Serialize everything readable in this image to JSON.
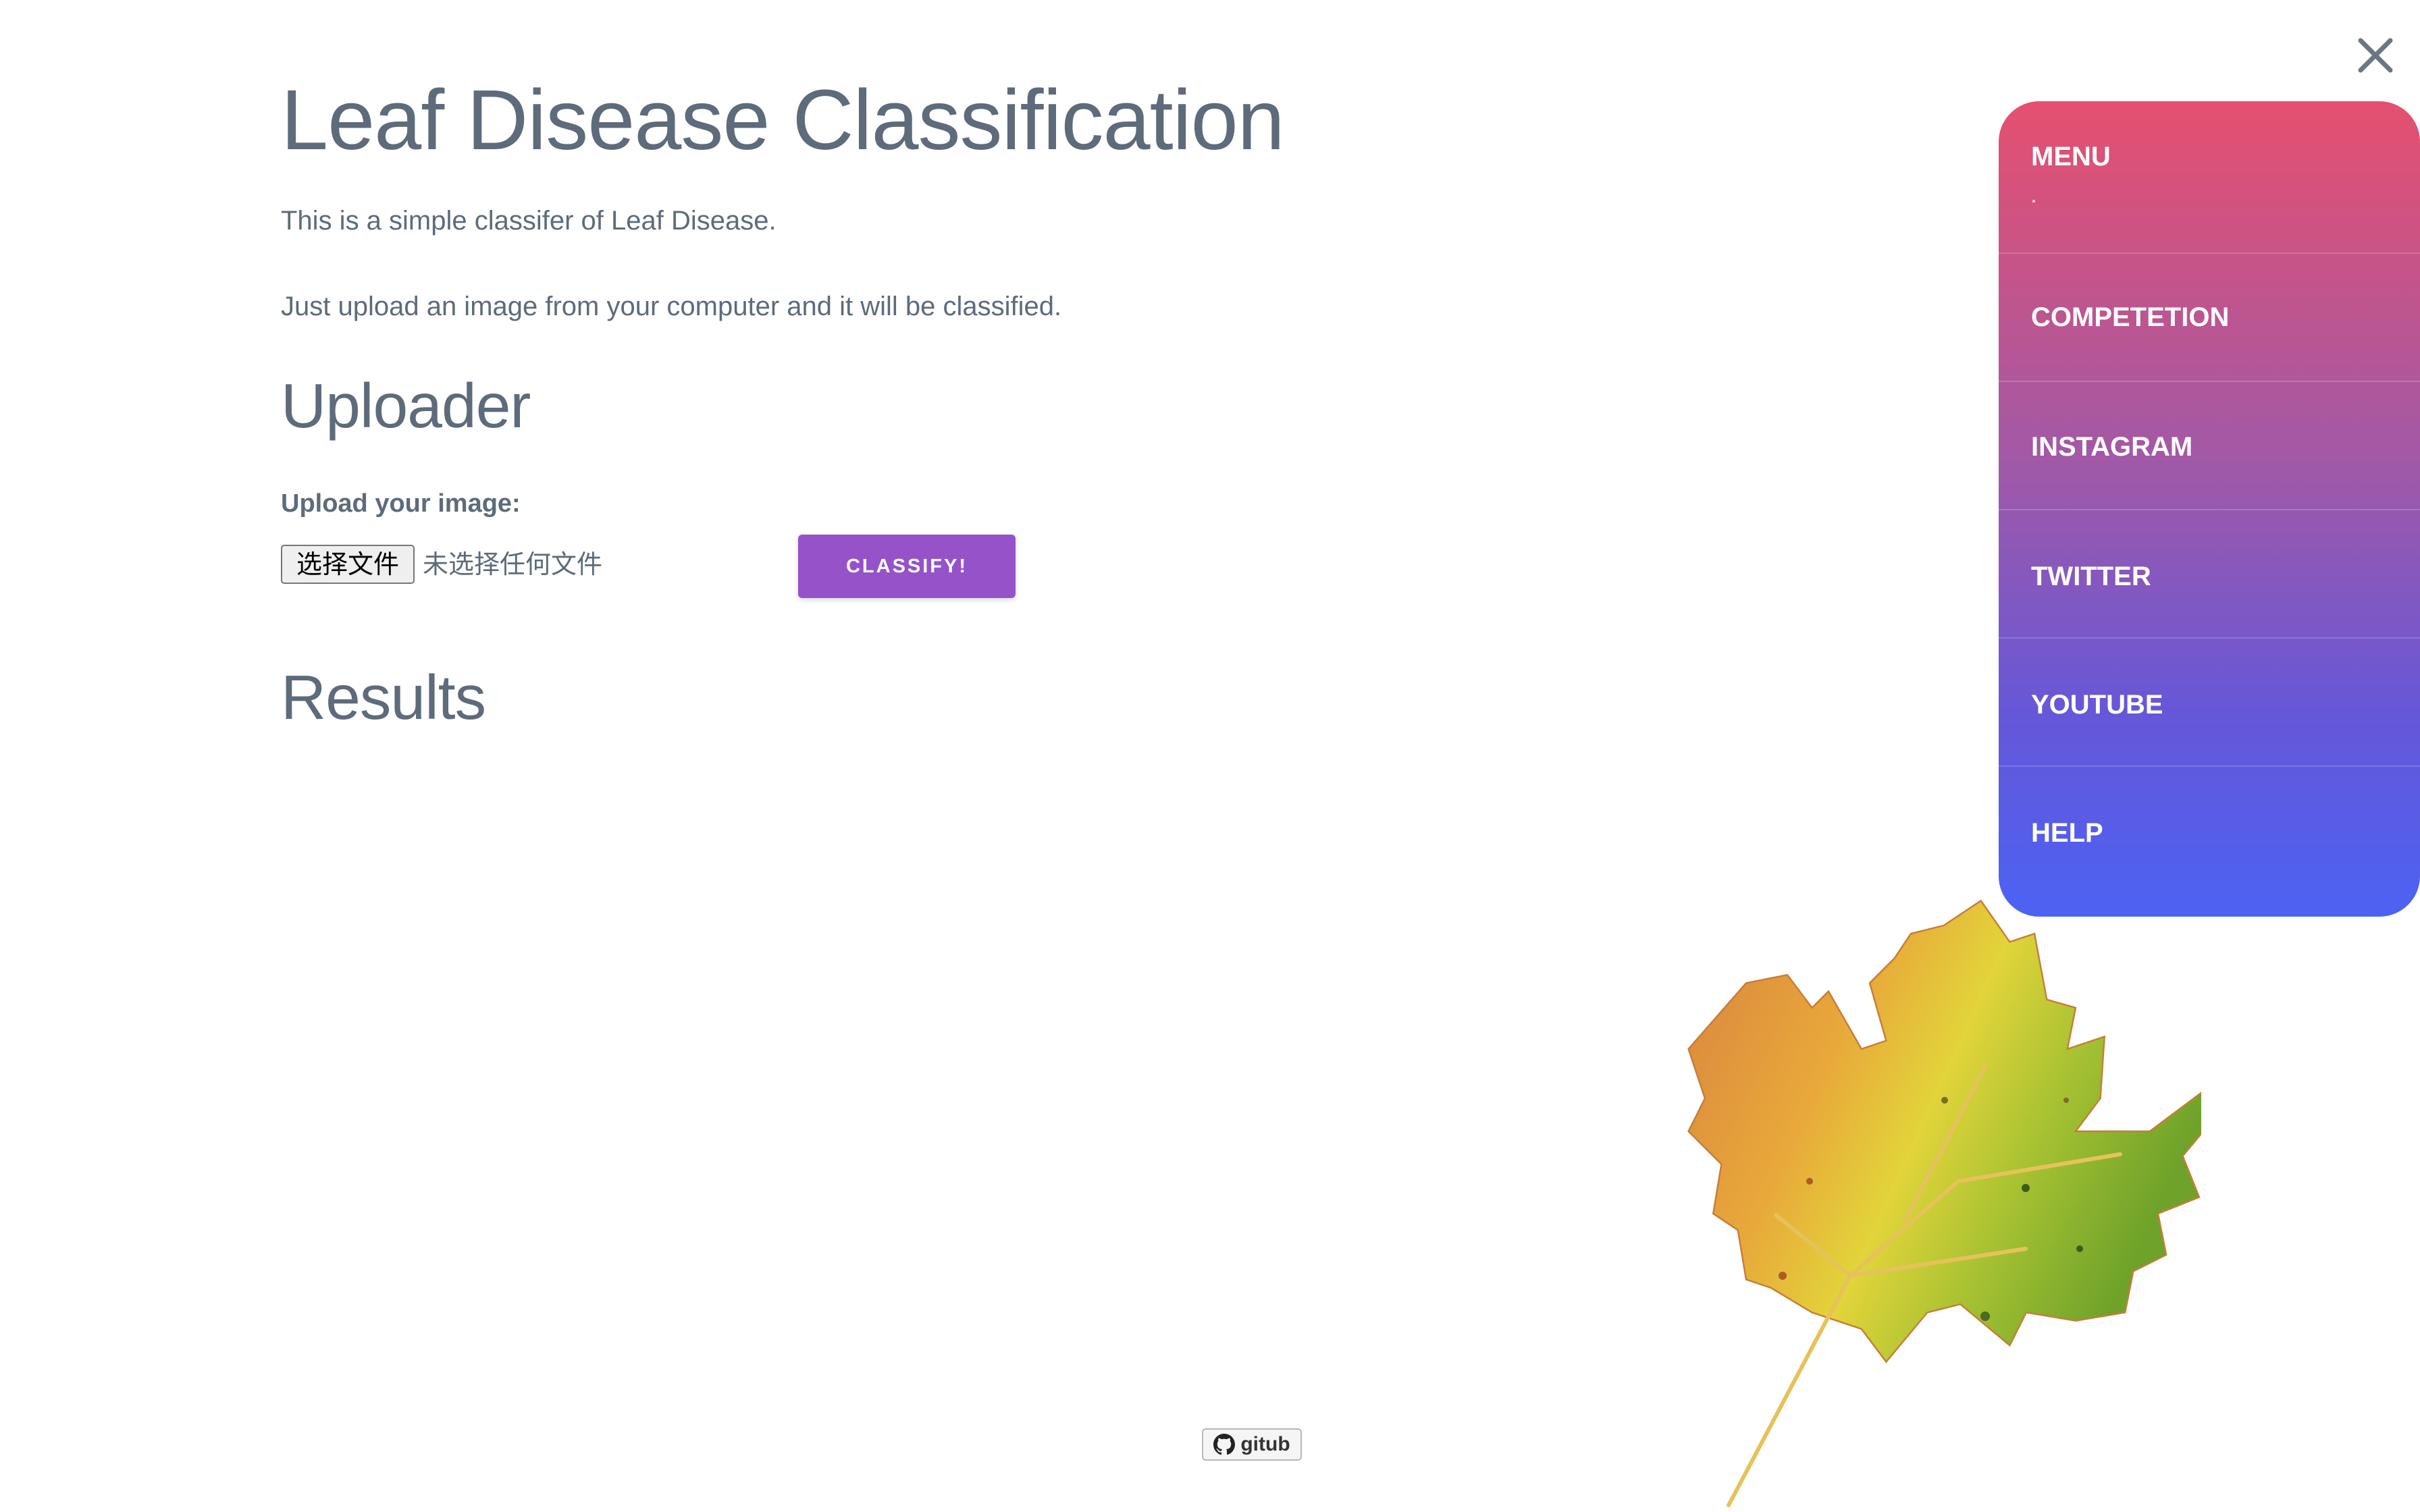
{
  "header": {
    "title": "Leaf Disease Classification",
    "description_line1": "This is a simple classifer of Leaf Disease.",
    "description_line2": "Just upload an image from your computer and it will be classified."
  },
  "uploader": {
    "heading": "Uploader",
    "label": "Upload your image:",
    "file_button_label": "选择文件",
    "file_status": "未选择任何文件",
    "classify_label": "CLASSIFY!"
  },
  "results": {
    "heading": "Results"
  },
  "menu": {
    "items": [
      {
        "label": "MENU"
      },
      {
        "label": "COMPETETION"
      },
      {
        "label": "INSTAGRAM"
      },
      {
        "label": "TWITTER"
      },
      {
        "label": "YOUTUBE"
      },
      {
        "label": "HELP"
      }
    ],
    "close_icon": "close-icon",
    "gradient_top": "#e5506f",
    "gradient_bottom": "#4c62f4"
  },
  "footer": {
    "badge_label": "gitub",
    "badge_icon": "github-icon"
  },
  "colors": {
    "text": "#5d6b7b",
    "accent": "#9552c9"
  }
}
